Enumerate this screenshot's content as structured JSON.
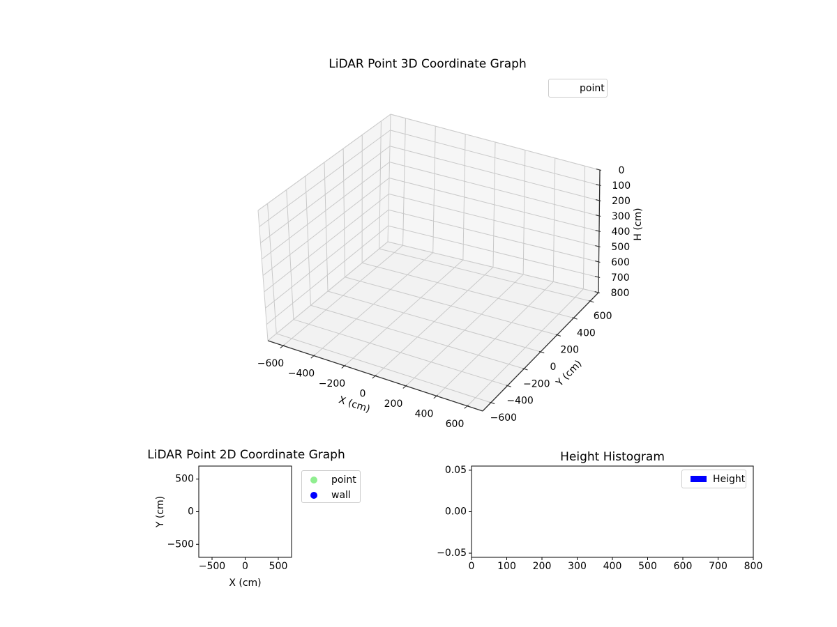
{
  "figure": {
    "background": "#ffffff"
  },
  "chart_data": [
    {
      "id": "lidar-3d",
      "type": "scatter3d",
      "title": "LiDAR Point 3D Coordinate Graph",
      "xlabel": "X (cm)",
      "ylabel": "Y (cm)",
      "zlabel": "H (cm)",
      "xlim": [
        -700,
        700
      ],
      "ylim": [
        -700,
        700
      ],
      "zlim": [
        0,
        800
      ],
      "z_axis_inverted": true,
      "grid": true,
      "xticks": [
        -600,
        -400,
        -200,
        0,
        200,
        400,
        600
      ],
      "xtick_labels": [
        "−600",
        "−400",
        "−200",
        "0",
        "200",
        "400",
        "600"
      ],
      "yticks": [
        -600,
        -400,
        -200,
        0,
        200,
        400,
        600
      ],
      "ytick_labels": [
        "−600",
        "−400",
        "−200",
        "0",
        "200",
        "400",
        "600"
      ],
      "zticks": [
        0,
        100,
        200,
        300,
        400,
        500,
        600,
        700,
        800
      ],
      "ztick_labels": [
        "0",
        "100",
        "200",
        "300",
        "400",
        "500",
        "600",
        "700",
        "800"
      ],
      "legend": {
        "position": "upper-right-outside",
        "entries": [
          {
            "label": "point",
            "marker": "none"
          }
        ]
      },
      "series": [
        {
          "name": "point",
          "points": []
        }
      ]
    },
    {
      "id": "lidar-2d",
      "type": "scatter",
      "title": "LiDAR Point 2D Coordinate Graph",
      "xlabel": "X (cm)",
      "ylabel": "Y (cm)",
      "xlim": [
        -700,
        700
      ],
      "ylim": [
        -700,
        700
      ],
      "grid": false,
      "xticks": [
        -500,
        0,
        500
      ],
      "xtick_labels": [
        "−500",
        "0",
        "500"
      ],
      "yticks": [
        -500,
        0,
        500
      ],
      "ytick_labels": [
        "−500",
        "0",
        "500"
      ],
      "legend": {
        "position": "outside-right",
        "entries": [
          {
            "label": "point",
            "marker": "circle",
            "color": "#90ee90"
          },
          {
            "label": "wall",
            "marker": "circle",
            "color": "#0000ff"
          }
        ]
      },
      "series": [
        {
          "name": "point",
          "points": []
        },
        {
          "name": "wall",
          "points": []
        }
      ]
    },
    {
      "id": "height-histogram",
      "type": "bar",
      "title": "Height Histogram",
      "xlabel": "",
      "ylabel": "",
      "xlim": [
        0,
        800
      ],
      "ylim": [
        -0.055,
        0.055
      ],
      "grid": false,
      "xticks": [
        0,
        100,
        200,
        300,
        400,
        500,
        600,
        700,
        800
      ],
      "xtick_labels": [
        "0",
        "100",
        "200",
        "300",
        "400",
        "500",
        "600",
        "700",
        "800"
      ],
      "yticks": [
        -0.05,
        0,
        0.05
      ],
      "ytick_labels": [
        "−0.05",
        "0.00",
        "0.05"
      ],
      "legend": {
        "position": "upper-right",
        "entries": [
          {
            "label": "Height",
            "marker": "rect",
            "color": "#0000ff"
          }
        ]
      },
      "values": []
    }
  ]
}
